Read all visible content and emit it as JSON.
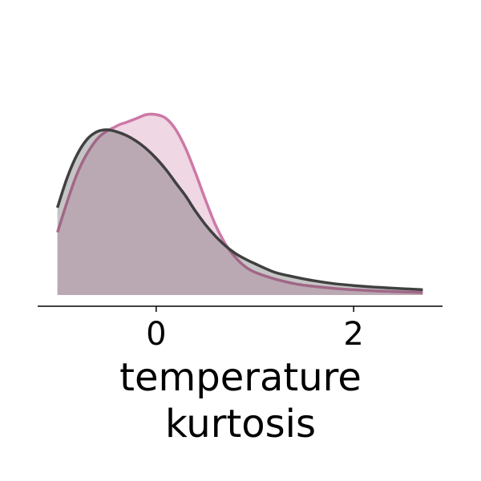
{
  "chart_data": {
    "type": "area",
    "xlabel": [
      "temperature",
      "kurtosis"
    ],
    "ylabel": "",
    "xlim": [
      -1.2,
      2.9
    ],
    "ylim": [
      0,
      1.0
    ],
    "xticks": [
      0,
      2
    ],
    "grid": false,
    "legend": "none",
    "series": [
      {
        "color": "#cc79a7",
        "fill_opacity": 0.3,
        "x": [
          -1.0,
          -0.8,
          -0.6,
          -0.4,
          -0.3,
          -0.2,
          -0.1,
          0.0,
          0.1,
          0.2,
          0.3,
          0.4,
          0.5,
          0.6,
          0.7,
          0.8,
          0.9,
          1.0,
          1.2,
          1.4,
          1.6,
          1.8,
          2.0,
          2.2,
          2.4,
          2.7
        ],
        "values": [
          0.33,
          0.64,
          0.82,
          0.89,
          0.91,
          0.93,
          0.95,
          0.95,
          0.93,
          0.87,
          0.77,
          0.64,
          0.5,
          0.37,
          0.27,
          0.2,
          0.15,
          0.12,
          0.085,
          0.06,
          0.045,
          0.035,
          0.028,
          0.022,
          0.018,
          0.013
        ]
      },
      {
        "color": "#404040",
        "fill_opacity": 0.3,
        "x": [
          -1.0,
          -0.9,
          -0.8,
          -0.7,
          -0.6,
          -0.5,
          -0.4,
          -0.3,
          -0.2,
          -0.1,
          0.0,
          0.1,
          0.2,
          0.3,
          0.4,
          0.5,
          0.6,
          0.7,
          0.8,
          0.9,
          1.0,
          1.2,
          1.4,
          1.6,
          1.8,
          2.0,
          2.2,
          2.4,
          2.7
        ],
        "values": [
          0.46,
          0.62,
          0.74,
          0.82,
          0.86,
          0.87,
          0.86,
          0.84,
          0.81,
          0.77,
          0.72,
          0.66,
          0.59,
          0.52,
          0.44,
          0.37,
          0.31,
          0.26,
          0.22,
          0.19,
          0.165,
          0.12,
          0.095,
          0.075,
          0.06,
          0.05,
          0.042,
          0.036,
          0.028
        ]
      }
    ]
  }
}
